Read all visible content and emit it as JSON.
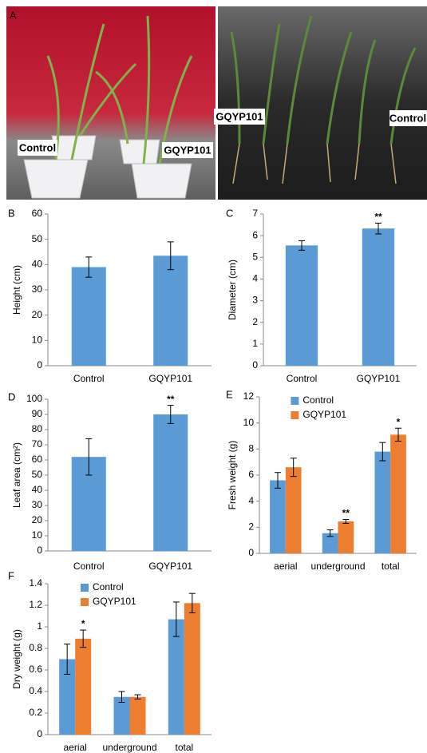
{
  "panel_a": {
    "panel": "A",
    "left_labels": [
      "Control",
      "GQYP101"
    ],
    "right_labels": [
      "GQYP101",
      "Control"
    ]
  },
  "chart_data": [
    {
      "panel": "B",
      "type": "bar",
      "y_label": "Height (cm)",
      "categories": [
        "Control",
        "GQYP101"
      ],
      "values": [
        39,
        43.5
      ],
      "errors": [
        4,
        5.5
      ],
      "annotations": [
        null,
        null
      ],
      "color": "#5b9bd5",
      "ylim": [
        0,
        60
      ],
      "yticks": [
        0,
        10,
        20,
        30,
        40,
        50,
        60
      ]
    },
    {
      "panel": "C",
      "type": "bar",
      "y_label": "Diameter (cm)",
      "categories": [
        "Control",
        "GQYP101"
      ],
      "values": [
        5.55,
        6.33
      ],
      "errors": [
        0.22,
        0.25
      ],
      "annotations": [
        null,
        "**"
      ],
      "color": "#5b9bd5",
      "ylim": [
        0,
        7
      ],
      "yticks": [
        0,
        1,
        2,
        3,
        4,
        5,
        6,
        7
      ]
    },
    {
      "panel": "D",
      "type": "bar",
      "y_label": "Leaf area (cm²)",
      "categories": [
        "Control",
        "GQYP101"
      ],
      "values": [
        62,
        90
      ],
      "errors": [
        12,
        6
      ],
      "annotations": [
        null,
        "**"
      ],
      "color": "#5b9bd5",
      "ylim": [
        0,
        100
      ],
      "yticks": [
        0,
        10,
        20,
        30,
        40,
        50,
        60,
        70,
        80,
        90,
        100
      ]
    },
    {
      "panel": "E",
      "type": "bar",
      "y_label": "Fresh weight (g)",
      "categories": [
        "aerial",
        "underground",
        "total"
      ],
      "series": [
        {
          "name": "Control",
          "color": "#5b9bd5",
          "values": [
            5.6,
            1.55,
            7.8
          ],
          "errors": [
            0.6,
            0.25,
            0.7
          ],
          "annotations": [
            null,
            null,
            null
          ]
        },
        {
          "name": "GQYP101",
          "color": "#ed7d31",
          "values": [
            6.6,
            2.45,
            9.1
          ],
          "errors": [
            0.7,
            0.15,
            0.5
          ],
          "annotations": [
            null,
            "**",
            "*"
          ]
        }
      ],
      "ylim": [
        0,
        12
      ],
      "yticks": [
        0,
        2,
        4,
        6,
        8,
        10,
        12
      ],
      "legend": "top-left"
    },
    {
      "panel": "F",
      "type": "bar",
      "y_label": "Dry weight (g)",
      "categories": [
        "aerial",
        "underground",
        "total"
      ],
      "series": [
        {
          "name": "Control",
          "color": "#5b9bd5",
          "values": [
            0.7,
            0.35,
            1.07
          ],
          "errors": [
            0.14,
            0.05,
            0.16
          ],
          "annotations": [
            null,
            null,
            null
          ]
        },
        {
          "name": "GQYP101",
          "color": "#ed7d31",
          "values": [
            0.89,
            0.35,
            1.22
          ],
          "errors": [
            0.08,
            0.02,
            0.09
          ],
          "annotations": [
            "*",
            null,
            null
          ]
        }
      ],
      "ylim": [
        0,
        1.4
      ],
      "yticks": [
        0,
        0.2,
        0.4,
        0.6,
        0.8,
        1,
        1.2,
        1.4
      ],
      "legend": "top-left"
    }
  ]
}
